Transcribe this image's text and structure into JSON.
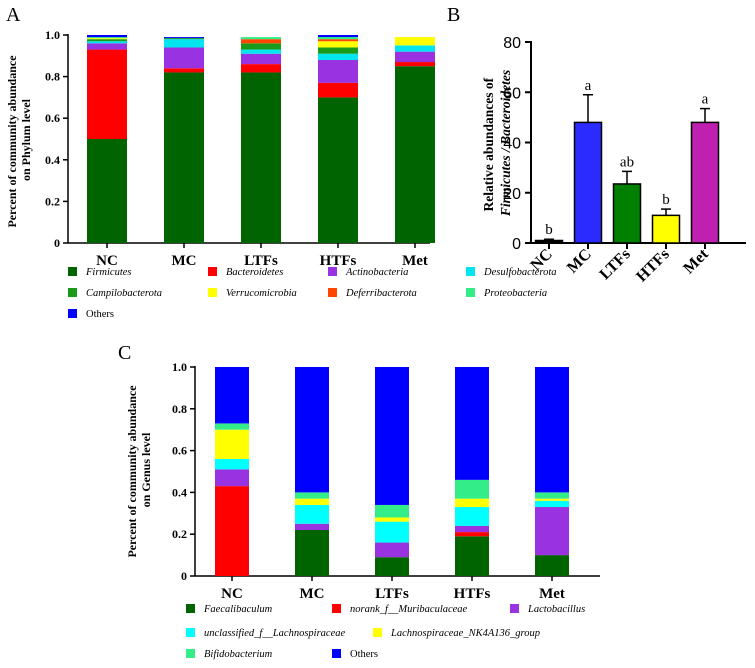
{
  "chart_data": [
    {
      "panel": "A",
      "type": "bar",
      "stacked": true,
      "ylabel_lines": [
        "Percent of community abundance",
        "on Phylum level"
      ],
      "ylim": [
        0,
        1
      ],
      "yticks": [
        "0",
        "0.2",
        "0.4",
        "0.6",
        "0.8",
        "1.0"
      ],
      "ytick_values": [
        0,
        0.2,
        0.4,
        0.6,
        0.8,
        1.0
      ],
      "categories": [
        "NC",
        "MC",
        "LTFs",
        "HTFs",
        "Met"
      ],
      "series": [
        {
          "name": "Firmicutes",
          "italic": true,
          "color": "#006400",
          "values": [
            0.5,
            0.82,
            0.82,
            0.7,
            0.85
          ]
        },
        {
          "name": "Bacteroidetes",
          "italic": true,
          "color": "#ff0000",
          "values": [
            0.43,
            0.02,
            0.04,
            0.07,
            0.02
          ]
        },
        {
          "name": "Actinobacteria",
          "italic": true,
          "color": "#9932e0",
          "values": [
            0.03,
            0.1,
            0.05,
            0.11,
            0.05
          ]
        },
        {
          "name": "Desulfobacterota",
          "italic": true,
          "color": "#00e5ee",
          "values": [
            0.01,
            0.04,
            0.02,
            0.03,
            0.03
          ]
        },
        {
          "name": "Campilobacterota",
          "italic": true,
          "color": "#1a9a1a",
          "values": [
            0.01,
            0.005,
            0.03,
            0.03,
            0.0
          ]
        },
        {
          "name": "Verrucomicrobia",
          "italic": true,
          "color": "#ffff00",
          "values": [
            0.005,
            0.0,
            0.0,
            0.03,
            0.04
          ]
        },
        {
          "name": "Deferribacterota",
          "italic": true,
          "color": "#ff4500",
          "values": [
            0.0,
            0.0,
            0.02,
            0.01,
            0.0
          ]
        },
        {
          "name": "Proteobacteria",
          "italic": true,
          "color": "#33ee88",
          "values": [
            0.005,
            0.0,
            0.01,
            0.01,
            0.0
          ]
        },
        {
          "name": "Others",
          "italic": false,
          "color": "#0000ff",
          "values": [
            0.01,
            0.005,
            0.0,
            0.01,
            0.0
          ]
        }
      ]
    },
    {
      "panel": "B",
      "type": "bar",
      "ylabel_lines": [
        "Relative abundances of",
        "Firmicutes / Bacteroidetes"
      ],
      "ylim": [
        0,
        80
      ],
      "yticks": [
        "0",
        "20",
        "40",
        "60",
        "80"
      ],
      "ytick_values": [
        0,
        20,
        40,
        60,
        80
      ],
      "categories": [
        "NC",
        "MC",
        "LTFs",
        "HTFs",
        "Met"
      ],
      "values": [
        1,
        48,
        23.5,
        11,
        48
      ],
      "errors": [
        0.5,
        11,
        5,
        2.5,
        5.5
      ],
      "colors": [
        "#000000",
        "#2b2bff",
        "#008000",
        "#ffff00",
        "#c020b0"
      ],
      "significance": [
        "b",
        "a",
        "ab",
        "b",
        "a"
      ]
    },
    {
      "panel": "C",
      "type": "bar",
      "stacked": true,
      "ylabel_lines": [
        "Percent of community abundance",
        "on Genus level"
      ],
      "ylim": [
        0,
        1
      ],
      "yticks": [
        "0",
        "0.2",
        "0.4",
        "0.6",
        "0.8",
        "1.0"
      ],
      "ytick_values": [
        0,
        0.2,
        0.4,
        0.6,
        0.8,
        1.0
      ],
      "categories": [
        "NC",
        "MC",
        "LTFs",
        "HTFs",
        "Met"
      ],
      "series": [
        {
          "name": "Faecalibaculum",
          "italic": true,
          "color": "#006400",
          "values": [
            0.0,
            0.22,
            0.09,
            0.19,
            0.1
          ]
        },
        {
          "name": "norank_f__Muribaculaceae",
          "italic": true,
          "color": "#ff0000",
          "values": [
            0.43,
            0.0,
            0.0,
            0.02,
            0.0
          ]
        },
        {
          "name": "Lactobacillus",
          "italic": true,
          "color": "#9932e0",
          "values": [
            0.08,
            0.03,
            0.07,
            0.03,
            0.23
          ]
        },
        {
          "name": "unclassified_f__Lachnospiraceae",
          "italic": true,
          "color": "#00ffff",
          "values": [
            0.05,
            0.09,
            0.1,
            0.09,
            0.03
          ]
        },
        {
          "name": "Lachnospiraceae_NK4A136_group",
          "italic": true,
          "color": "#ffff00",
          "values": [
            0.14,
            0.03,
            0.02,
            0.04,
            0.01
          ]
        },
        {
          "name": "Bifidobacterium",
          "italic": true,
          "color": "#33ee88",
          "values": [
            0.03,
            0.03,
            0.06,
            0.09,
            0.03
          ]
        },
        {
          "name": "Others",
          "italic": false,
          "color": "#0000ff",
          "values": [
            0.27,
            0.6,
            0.66,
            0.54,
            0.6
          ]
        }
      ]
    }
  ],
  "labels": {
    "panel_a": "A",
    "panel_b": "B",
    "panel_c": "C"
  }
}
